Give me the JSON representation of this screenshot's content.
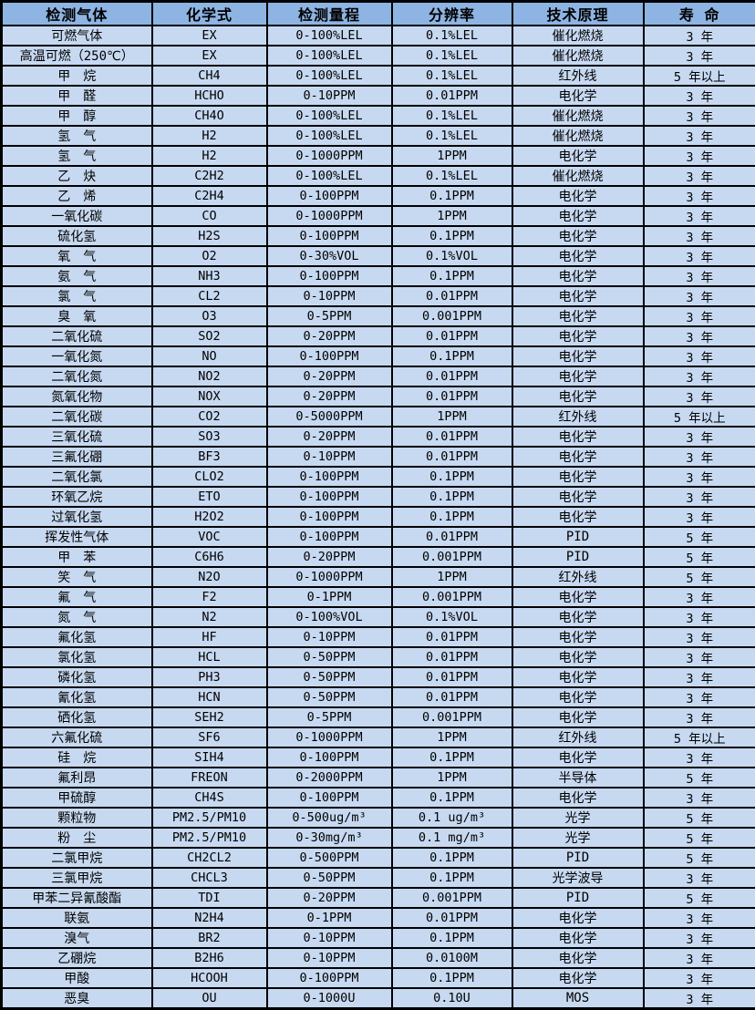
{
  "colors": {
    "header_bg": "#8DB4E2",
    "row_bg": "#C7D9F1",
    "grid": "#000000",
    "text": "#000000"
  },
  "header": {
    "columns": [
      "检测气体",
      "化学式",
      "检测量程",
      "分辨率",
      "技术原理",
      "寿 命"
    ]
  },
  "rows": [
    {
      "gas": "可燃气体",
      "formula": "EX",
      "range": "0-100%LEL",
      "resolution": "0.1%LEL",
      "principle": "催化燃烧",
      "life": "3 年"
    },
    {
      "gas": "高温可燃（250℃）",
      "formula": "EX",
      "range": "0-100%LEL",
      "resolution": "0.1%LEL",
      "principle": "催化燃烧",
      "life": "3 年"
    },
    {
      "gas": "甲　烷",
      "formula": "CH4",
      "range": "0-100%LEL",
      "resolution": "0.1%LEL",
      "principle": "红外线",
      "life": "5 年以上"
    },
    {
      "gas": "甲　醛",
      "formula": "HCHO",
      "range": "0-10PPM",
      "resolution": "0.01PPM",
      "principle": "电化学",
      "life": "3 年"
    },
    {
      "gas": "甲　醇",
      "formula": "CH4O",
      "range": "0-100%LEL",
      "resolution": "0.1%LEL",
      "principle": "催化燃烧",
      "life": "3 年"
    },
    {
      "gas": "氢　气",
      "formula": "H2",
      "range": "0-100%LEL",
      "resolution": "0.1%LEL",
      "principle": "催化燃烧",
      "life": "3 年"
    },
    {
      "gas": "氢　气",
      "formula": "H2",
      "range": "0-1000PPM",
      "resolution": "1PPM",
      "principle": "电化学",
      "life": "3 年"
    },
    {
      "gas": "乙　炔",
      "formula": "C2H2",
      "range": "0-100%LEL",
      "resolution": "0.1%LEL",
      "principle": "催化燃烧",
      "life": "3 年"
    },
    {
      "gas": "乙　烯",
      "formula": "C2H4",
      "range": "0-100PPM",
      "resolution": "0.1PPM",
      "principle": "电化学",
      "life": "3 年"
    },
    {
      "gas": "一氧化碳",
      "formula": "CO",
      "range": "0-1000PPM",
      "resolution": "1PPM",
      "principle": "电化学",
      "life": "3 年"
    },
    {
      "gas": "硫化氢",
      "formula": "H2S",
      "range": "0-100PPM",
      "resolution": "0.1PPM",
      "principle": "电化学",
      "life": "3 年"
    },
    {
      "gas": "氧　气",
      "formula": "O2",
      "range": "0-30%VOL",
      "resolution": "0.1%VOL",
      "principle": "电化学",
      "life": "3 年"
    },
    {
      "gas": "氨　气",
      "formula": "NH3",
      "range": "0-100PPM",
      "resolution": "0.1PPM",
      "principle": "电化学",
      "life": "3 年"
    },
    {
      "gas": "氯　气",
      "formula": "CL2",
      "range": "0-10PPM",
      "resolution": "0.01PPM",
      "principle": "电化学",
      "life": "3 年"
    },
    {
      "gas": "臭　氧",
      "formula": "O3",
      "range": "0-5PPM",
      "resolution": "0.001PPM",
      "principle": "电化学",
      "life": "3 年"
    },
    {
      "gas": "二氧化硫",
      "formula": "SO2",
      "range": "0-20PPM",
      "resolution": "0.01PPM",
      "principle": "电化学",
      "life": "3 年"
    },
    {
      "gas": "一氧化氮",
      "formula": "NO",
      "range": "0-100PPM",
      "resolution": "0.1PPM",
      "principle": "电化学",
      "life": "3 年"
    },
    {
      "gas": "二氧化氮",
      "formula": "NO2",
      "range": "0-20PPM",
      "resolution": "0.01PPM",
      "principle": "电化学",
      "life": "3 年"
    },
    {
      "gas": "氮氧化物",
      "formula": "NOX",
      "range": "0-20PPM",
      "resolution": "0.01PPM",
      "principle": "电化学",
      "life": "3 年"
    },
    {
      "gas": "二氧化碳",
      "formula": "CO2",
      "range": "0-5000PPM",
      "resolution": "1PPM",
      "principle": "红外线",
      "life": "5 年以上"
    },
    {
      "gas": "三氧化硫",
      "formula": "SO3",
      "range": "0-20PPM",
      "resolution": "0.01PPM",
      "principle": "电化学",
      "life": "3 年"
    },
    {
      "gas": "三氟化硼",
      "formula": "BF3",
      "range": "0-10PPM",
      "resolution": "0.01PPM",
      "principle": "电化学",
      "life": "3 年"
    },
    {
      "gas": "二氧化氯",
      "formula": "CLO2",
      "range": "0-100PPM",
      "resolution": "0.1PPM",
      "principle": "电化学",
      "life": "3 年"
    },
    {
      "gas": "环氧乙烷",
      "formula": "ETO",
      "range": "0-100PPM",
      "resolution": "0.1PPM",
      "principle": "电化学",
      "life": "3 年"
    },
    {
      "gas": "过氧化氢",
      "formula": "H2O2",
      "range": "0-100PPM",
      "resolution": "0.1PPM",
      "principle": "电化学",
      "life": "3 年"
    },
    {
      "gas": "挥发性气体",
      "formula": "VOC",
      "range": "0-100PPM",
      "resolution": "0.01PPM",
      "principle": "PID",
      "life": "5 年"
    },
    {
      "gas": "甲　苯",
      "formula": "C6H6",
      "range": "0-20PPM",
      "resolution": "0.001PPM",
      "principle": "PID",
      "life": "5 年"
    },
    {
      "gas": "笑　气",
      "formula": "N2O",
      "range": "0-1000PPM",
      "resolution": "1PPM",
      "principle": "红外线",
      "life": "5 年"
    },
    {
      "gas": "氟　气",
      "formula": "F2",
      "range": "0-1PPM",
      "resolution": "0.001PPM",
      "principle": "电化学",
      "life": "3 年"
    },
    {
      "gas": "氮　气",
      "formula": "N2",
      "range": "0-100%VOL",
      "resolution": "0.1%VOL",
      "principle": "电化学",
      "life": "3 年"
    },
    {
      "gas": "氟化氢",
      "formula": "HF",
      "range": "0-10PPM",
      "resolution": "0.01PPM",
      "principle": "电化学",
      "life": "3 年"
    },
    {
      "gas": "氯化氢",
      "formula": "HCL",
      "range": "0-50PPM",
      "resolution": "0.01PPM",
      "principle": "电化学",
      "life": "3 年"
    },
    {
      "gas": "磷化氢",
      "formula": "PH3",
      "range": "0-50PPM",
      "resolution": "0.01PPM",
      "principle": "电化学",
      "life": "3 年"
    },
    {
      "gas": "氰化氢",
      "formula": "HCN",
      "range": "0-50PPM",
      "resolution": "0.01PPM",
      "principle": "电化学",
      "life": "3 年"
    },
    {
      "gas": "硒化氢",
      "formula": "SEH2",
      "range": "0-5PPM",
      "resolution": "0.001PPM",
      "principle": "电化学",
      "life": "3 年"
    },
    {
      "gas": "六氟化硫",
      "formula": "SF6",
      "range": "0-1000PPM",
      "resolution": "1PPM",
      "principle": "红外线",
      "life": "5 年以上"
    },
    {
      "gas": "硅　烷",
      "formula": "SIH4",
      "range": "0-100PPM",
      "resolution": "0.1PPM",
      "principle": "电化学",
      "life": "3 年"
    },
    {
      "gas": "氟利昂",
      "formula": "FREON",
      "range": "0-2000PPM",
      "resolution": "1PPM",
      "principle": "半导体",
      "life": "5 年"
    },
    {
      "gas": "甲硫醇",
      "formula": "CH4S",
      "range": "0-100PPM",
      "resolution": "0.1PPM",
      "principle": "电化学",
      "life": "3 年"
    },
    {
      "gas": "颗粒物",
      "formula": "PM2.5/PM10",
      "range": "0-500ug/m³",
      "resolution": "0.1 ug/m³",
      "principle": "光学",
      "life": "5 年"
    },
    {
      "gas": "粉　尘",
      "formula": "PM2.5/PM10",
      "range": "0-30mg/m³",
      "resolution": "0.1 mg/m³",
      "principle": "光学",
      "life": "5 年"
    },
    {
      "gas": "二氯甲烷",
      "formula": "CH2CL2",
      "range": "0-500PPM",
      "resolution": "0.1PPM",
      "principle": "PID",
      "life": "5 年"
    },
    {
      "gas": "三氯甲烷",
      "formula": "CHCL3",
      "range": "0-50PPM",
      "resolution": "0.1PPM",
      "principle": "光学波导",
      "life": "3 年"
    },
    {
      "gas": "甲苯二异氰酸酯",
      "formula": "TDI",
      "range": "0-20PPM",
      "resolution": "0.001PPM",
      "principle": "PID",
      "life": "5 年"
    },
    {
      "gas": "联氨",
      "formula": "N2H4",
      "range": "0-1PPM",
      "resolution": "0.01PPM",
      "principle": "电化学",
      "life": "3 年"
    },
    {
      "gas": "溴气",
      "formula": "BR2",
      "range": "0-10PPM",
      "resolution": "0.1PPM",
      "principle": "电化学",
      "life": "3 年"
    },
    {
      "gas": "乙硼烷",
      "formula": "B2H6",
      "range": "0-10PPM",
      "resolution": "0.0100M",
      "principle": "电化学",
      "life": "3 年"
    },
    {
      "gas": "甲酸",
      "formula": "HCOOH",
      "range": "0-100PPM",
      "resolution": "0.1PPM",
      "principle": "电化学",
      "life": "3 年"
    },
    {
      "gas": "恶臭",
      "formula": "OU",
      "range": "0-1000U",
      "resolution": "0.10U",
      "principle": "MOS",
      "life": "3 年"
    }
  ]
}
